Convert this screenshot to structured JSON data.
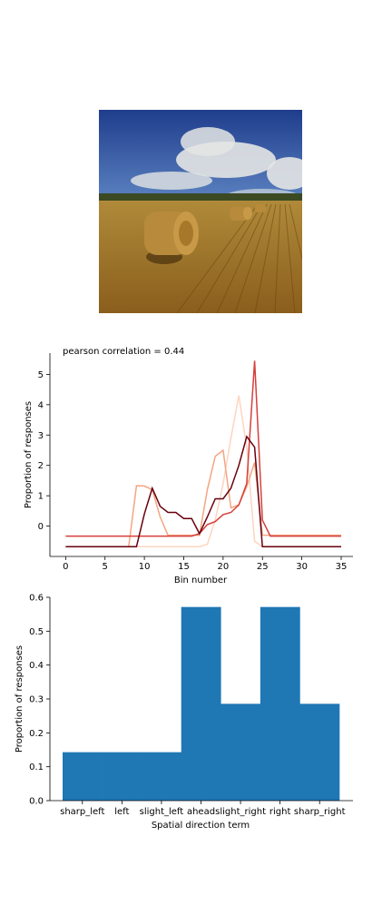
{
  "photo": {
    "colors": {
      "sky_top": "#1f3d8c",
      "sky_bottom": "#5f86c4",
      "cloud": "#e4e6e4",
      "field_far": "#b08a3a",
      "field_near": "#8a5e1c",
      "bale": "#b78a3c",
      "tree_line": "#3b4a22"
    }
  },
  "chart_data": [
    {
      "type": "line",
      "title": "pearson correlation = 0.44",
      "xlabel": "Bin number",
      "ylabel": "Proportion of responses",
      "xlim": [
        -2,
        36.5
      ],
      "ylim": [
        -1.0,
        5.7
      ],
      "xticks": [
        "0",
        "5",
        "10",
        "15",
        "20",
        "25",
        "30",
        "35"
      ],
      "yticks": [
        "0",
        "1",
        "2",
        "3",
        "4",
        "5"
      ],
      "grid": false,
      "series": [
        {
          "color": "#fdd5c0",
          "x": [
            0,
            8,
            9,
            10,
            11,
            12,
            13,
            14,
            15,
            16,
            17,
            18,
            19,
            20,
            21,
            22,
            23,
            24,
            25,
            26,
            35
          ],
          "y": [
            -0.68,
            -0.68,
            -0.68,
            -0.68,
            -0.68,
            -0.68,
            -0.68,
            -0.68,
            -0.68,
            -0.68,
            -0.68,
            -0.6,
            0.2,
            1.4,
            2.9,
            4.3,
            2.6,
            -0.5,
            -0.68,
            -0.68,
            -0.68
          ]
        },
        {
          "color": "#f4a582",
          "x": [
            0,
            8,
            9,
            10,
            11,
            12,
            13,
            14,
            15,
            16,
            17,
            18,
            19,
            20,
            21,
            22,
            23,
            24,
            25,
            26,
            35
          ],
          "y": [
            -0.68,
            -0.68,
            1.33,
            1.32,
            1.2,
            0.3,
            -0.3,
            -0.3,
            -0.3,
            -0.3,
            -0.3,
            1.2,
            2.3,
            2.5,
            0.6,
            0.7,
            1.3,
            2.1,
            -0.3,
            -0.3,
            -0.3
          ]
        },
        {
          "color": "#d6403a",
          "x": [
            0,
            8,
            9,
            10,
            11,
            12,
            13,
            14,
            15,
            16,
            17,
            18,
            19,
            20,
            21,
            22,
            23,
            24,
            25,
            26,
            35
          ],
          "y": [
            -0.33,
            -0.33,
            -0.33,
            -0.33,
            -0.33,
            -0.33,
            -0.33,
            -0.33,
            -0.33,
            -0.33,
            -0.25,
            0.05,
            0.15,
            0.38,
            0.45,
            0.7,
            1.4,
            5.45,
            0.2,
            -0.33,
            -0.33
          ]
        },
        {
          "color": "#67000d",
          "x": [
            0,
            8,
            9,
            10,
            11,
            12,
            13,
            14,
            15,
            16,
            17,
            18,
            19,
            20,
            21,
            22,
            23,
            24,
            25,
            26,
            35
          ],
          "y": [
            -0.68,
            -0.68,
            -0.68,
            0.4,
            1.25,
            0.65,
            0.45,
            0.45,
            0.25,
            0.25,
            -0.25,
            0.3,
            0.9,
            0.9,
            1.25,
            2.0,
            2.95,
            2.6,
            -0.68,
            -0.68,
            -0.68
          ]
        }
      ]
    },
    {
      "type": "bar",
      "xlabel": "Spatial direction term",
      "ylabel": "Proportion of responses",
      "ylim": [
        0.0,
        0.6
      ],
      "yticks": [
        "0.0",
        "0.1",
        "0.2",
        "0.3",
        "0.4",
        "0.5",
        "0.6"
      ],
      "categories": [
        "sharp_left",
        "left",
        "slight_left",
        "ahead",
        "slight_right",
        "right",
        "sharp_right"
      ],
      "values": [
        0.1429,
        0.1429,
        0.1429,
        0.5714,
        0.2857,
        0.5714,
        0.2857
      ],
      "color": "#1f77b4",
      "grid": false
    }
  ]
}
